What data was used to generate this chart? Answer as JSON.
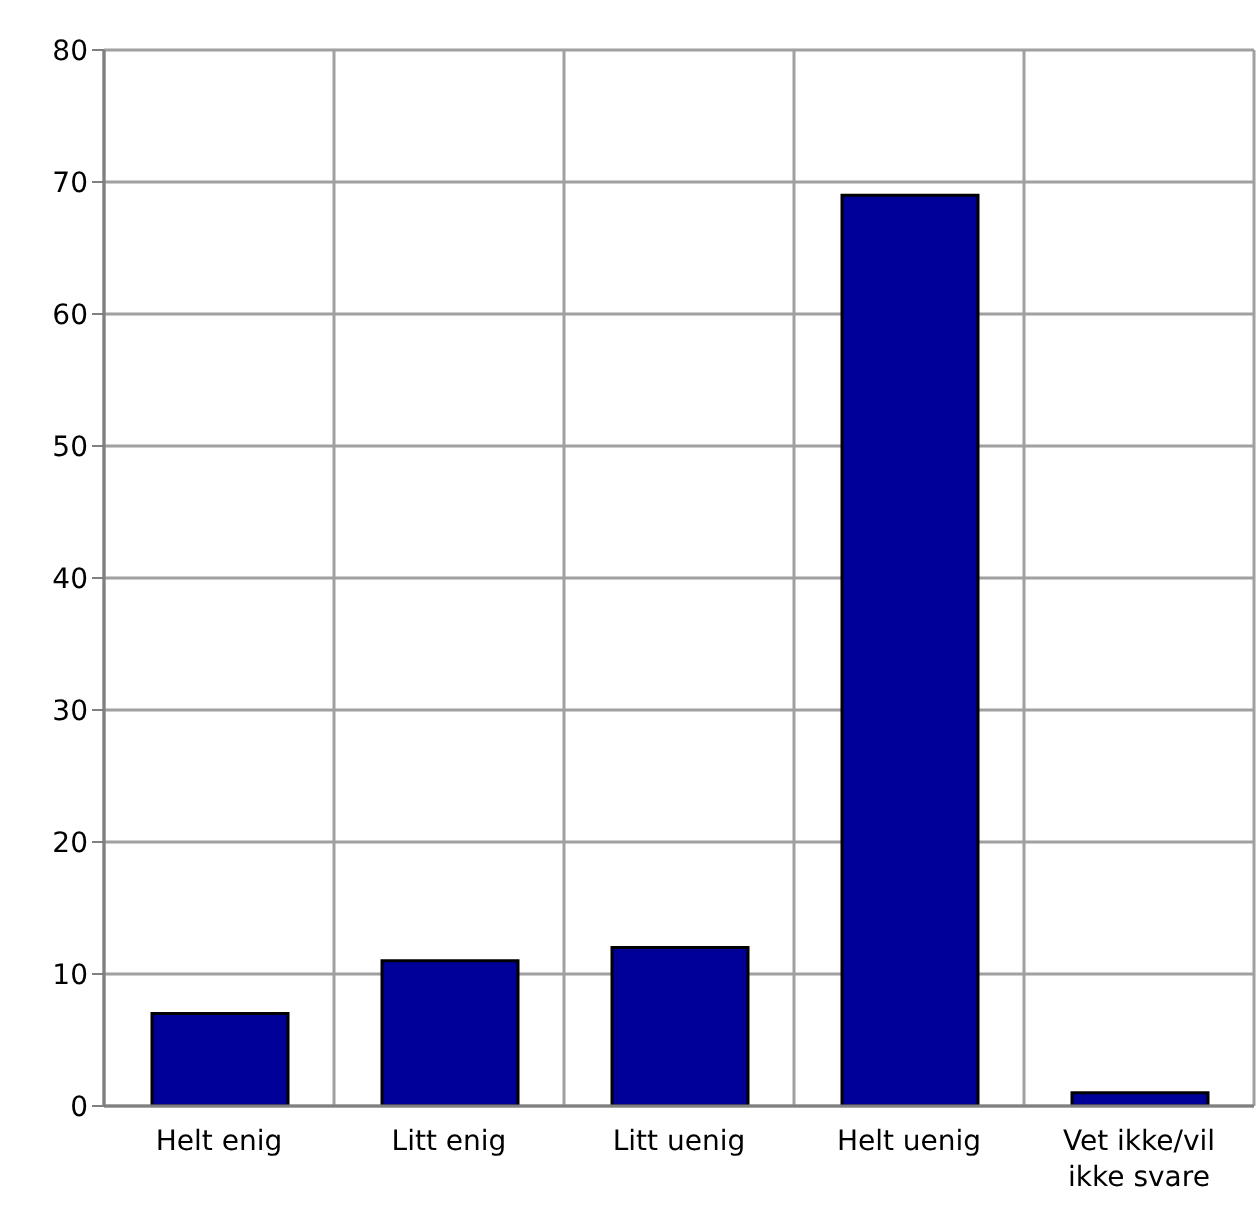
{
  "chart_data": {
    "type": "bar",
    "categories": [
      "Helt enig",
      "Litt enig",
      "Litt uenig",
      "Helt uenig",
      "Vet ikke/vil ikke svare"
    ],
    "values": [
      7,
      11,
      12,
      69,
      1
    ],
    "color": "#000099",
    "ylim": [
      0,
      80
    ],
    "yticks": [
      0,
      10,
      20,
      30,
      40,
      50,
      60,
      70,
      80
    ],
    "grid": true
  }
}
